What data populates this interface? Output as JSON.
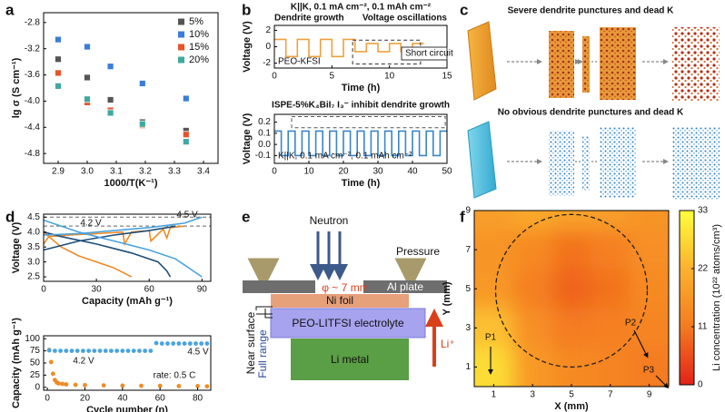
{
  "panel_labels": [
    "a",
    "b",
    "c",
    "d",
    "e",
    "f"
  ],
  "chart_data": [
    {
      "type": "scatter",
      "marker": "square",
      "x_label": "1000/T(K⁻¹)",
      "y_label": "lg σ (S cm⁻¹)",
      "x": [
        2.9,
        3.0,
        3.08,
        3.19,
        3.34
      ],
      "series": [
        {
          "name": "5%",
          "color": "#555555",
          "values": [
            -3.36,
            -3.64,
            -3.98,
            -4.32,
            -4.45
          ]
        },
        {
          "name": "10%",
          "color": "#3b7dd8",
          "values": [
            -3.06,
            -3.17,
            -3.47,
            -3.73,
            -3.96
          ]
        },
        {
          "name": "15%",
          "color": "#e8532a",
          "values": [
            -3.57,
            -4.02,
            -4.14,
            -4.37,
            -4.51
          ]
        },
        {
          "name": "20%",
          "color": "#3fa9a0",
          "values": [
            -3.77,
            -3.97,
            -4.18,
            -4.35,
            -4.62
          ]
        }
      ],
      "xlim": [
        2.85,
        3.45
      ],
      "xticks": [
        2.9,
        {
          "value": 3,
          "label": "3.0"
        },
        3.1,
        3.2,
        3.3,
        3.4
      ],
      "ylim": [
        -4.95,
        -2.65
      ],
      "yticks": [
        -2.8,
        -3.2,
        -3.6,
        {
          "value": -4,
          "label": "-4.0"
        },
        -4.4,
        -4.8
      ],
      "legend": "top-right"
    },
    {
      "type": "line",
      "title": "K||K, 0.1 mA cm⁻², 0.1 mAh cm⁻²",
      "annotations": [
        "Dendrite growth",
        "Voltage oscillations",
        "PEO-KFSI",
        "Short circuit"
      ],
      "x_label": "Time (h)",
      "y_label": "Voltage (V)",
      "x": [
        0,
        1,
        1,
        2,
        2,
        3,
        3,
        4,
        4,
        5,
        5,
        6,
        6,
        7,
        7,
        8,
        8,
        9,
        9,
        10,
        10,
        11,
        11,
        12,
        12,
        13
      ],
      "series": [
        {
          "color": "#f0a040",
          "values": [
            0.9,
            0.9,
            -1.2,
            -1.2,
            0.9,
            0.9,
            -1.2,
            -1.2,
            0.9,
            0.9,
            -1.2,
            -1.2,
            0.9,
            0.9,
            -0.6,
            -0.6,
            0.4,
            0.4,
            -0.6,
            -0.6,
            0.4,
            0.4,
            -0.6,
            -0.6,
            0.4,
            0.4
          ]
        }
      ],
      "xlim": [
        0,
        15
      ],
      "xticks": [
        0,
        5,
        10,
        15
      ],
      "ylim": [
        -2.6,
        2.6
      ],
      "yticks": [
        -2,
        0,
        2
      ]
    },
    {
      "type": "line",
      "title": "ISPE-5%K₄BiI₇ I₃⁻ inhibit dendrite growth",
      "annotations": [
        "K||K, 0.1 mA cm⁻², 0.1 mAh cm⁻²"
      ],
      "x_label": "Time (h)",
      "y_label": "Voltage (V)",
      "x": [
        0,
        2,
        2,
        4,
        4,
        6,
        6,
        8,
        8,
        10,
        10,
        12,
        12,
        14,
        14,
        16,
        16,
        18,
        18,
        20,
        20,
        22,
        22,
        24,
        24,
        26,
        26,
        28,
        28,
        30,
        30,
        32,
        32,
        34,
        34,
        36,
        36,
        38,
        38,
        40,
        40,
        42,
        42,
        44,
        44,
        46,
        46,
        48,
        48,
        50
      ],
      "series": [
        {
          "color": "#3a86c8",
          "values": [
            0.12,
            0.12,
            -0.1,
            -0.1,
            0.12,
            0.12,
            -0.1,
            -0.1,
            0.12,
            0.12,
            -0.1,
            -0.1,
            0.12,
            0.12,
            -0.1,
            -0.1,
            0.12,
            0.12,
            -0.1,
            -0.1,
            0.12,
            0.12,
            -0.1,
            -0.1,
            0.12,
            0.12,
            -0.1,
            -0.1,
            0.12,
            0.12,
            -0.1,
            -0.1,
            0.12,
            0.12,
            -0.1,
            -0.1,
            0.12,
            0.12,
            -0.1,
            -0.1,
            0.12,
            0.12,
            -0.1,
            -0.1,
            0.12,
            0.12,
            -0.1,
            -0.1,
            0.12,
            0.12
          ]
        }
      ],
      "xlim": [
        0,
        50
      ],
      "xticks": [
        0,
        10,
        20,
        30,
        40,
        50
      ],
      "ylim": [
        -0.17,
        0.27
      ],
      "yticks": [
        0.2,
        0.1,
        {
          "value": 0,
          "label": "0.0"
        },
        -0.1
      ]
    },
    {
      "type": "line",
      "x_label": "Capacity (mAh g⁻¹)",
      "y_label": "Voltage (V)",
      "annotations": [
        "4.5 V",
        "4.2 V"
      ],
      "hlines": [
        4.5,
        4.2
      ],
      "series": [
        {
          "color": "#f08a24",
          "x": [
            0,
            10,
            20,
            30,
            40,
            50
          ],
          "values": [
            4.0,
            3.5,
            3.2,
            3.0,
            2.8,
            2.5
          ]
        },
        {
          "color": "#f08a24",
          "x": [
            0,
            3,
            15,
            30,
            45,
            46,
            50,
            60,
            61,
            68,
            70,
            72,
            80
          ],
          "values": [
            3.6,
            3.85,
            3.9,
            3.95,
            4.0,
            3.6,
            4.0,
            4.05,
            3.7,
            4.1,
            3.8,
            4.15,
            4.2
          ]
        },
        {
          "color": "#1f4e79",
          "x": [
            0,
            10,
            30,
            50,
            65,
            70,
            72
          ],
          "values": [
            4.0,
            3.85,
            3.6,
            3.3,
            3.0,
            2.7,
            2.5
          ]
        },
        {
          "color": "#1f4e79",
          "x": [
            0,
            20,
            40,
            60,
            75
          ],
          "values": [
            3.4,
            3.7,
            3.9,
            4.05,
            4.2
          ]
        },
        {
          "color": "#4aa3df",
          "x": [
            0,
            20,
            40,
            60,
            80,
            90
          ],
          "values": [
            3.9,
            3.95,
            4.05,
            4.15,
            4.3,
            4.5
          ]
        },
        {
          "color": "#4aa3df",
          "x": [
            0,
            20,
            40,
            60,
            75,
            85,
            90
          ],
          "values": [
            4.4,
            4.0,
            3.7,
            3.4,
            3.1,
            2.7,
            2.5
          ]
        }
      ],
      "xlim": [
        0,
        95
      ],
      "xticks": [
        0,
        30,
        60,
        90
      ],
      "ylim": [
        2.35,
        4.6
      ],
      "yticks": [
        2.5,
        {
          "value": 3,
          "label": "3.0"
        },
        3.5,
        {
          "value": 4,
          "label": "4.0"
        },
        4.5
      ]
    },
    {
      "type": "scatter",
      "marker": "circle",
      "x_label": "Cycle number (n)",
      "y_label": "Capacity (mAh g⁻¹)",
      "annotations": [
        "4.2 V",
        "4.5 V",
        "rate: 0.5 C"
      ],
      "series": [
        {
          "color": "#f08a24",
          "x": [
            1,
            2,
            3,
            4,
            5,
            6,
            8,
            10,
            15,
            20,
            30,
            40,
            50,
            60,
            70,
            80,
            85
          ],
          "values": [
            77,
            52,
            28,
            15,
            10,
            8,
            7,
            6,
            5,
            4.5,
            4,
            3.5,
            3,
            3,
            2.5,
            2.5,
            2
          ]
        },
        {
          "color": "#4aa3df",
          "x": [
            1,
            4,
            7,
            10,
            13,
            16,
            19,
            22,
            25,
            28,
            31,
            34,
            37,
            40,
            43,
            46,
            49,
            52,
            55
          ],
          "values": [
            76,
            75,
            75,
            75,
            75,
            75,
            75,
            75,
            75,
            75,
            75,
            75,
            75,
            75,
            75,
            75,
            75,
            75,
            75
          ]
        },
        {
          "color": "#4aa3df",
          "x": [
            58,
            61,
            64,
            67,
            70,
            73,
            76,
            79,
            82,
            85
          ],
          "values": [
            91,
            90,
            90,
            90,
            90,
            90,
            90,
            90,
            90,
            90
          ]
        }
      ],
      "xlim": [
        -2,
        87
      ],
      "xticks": [
        0,
        20,
        40,
        60,
        80
      ],
      "ylim": [
        -6,
        106
      ],
      "yticks": [
        0,
        25,
        50,
        75,
        100
      ]
    },
    {
      "type": "heatmap",
      "x_label": "X (mm)",
      "y_label": "Y (mm)",
      "annotations": [
        "P1",
        "P2",
        "P3"
      ],
      "colorbar_label": "Li concentration (10²² atoms/cm³)",
      "x": [
        1,
        3,
        5,
        7,
        9
      ],
      "y": [
        9,
        7,
        5,
        3,
        1
      ],
      "values": [
        [
          18,
          20,
          19,
          18,
          16
        ],
        [
          16,
          14,
          10,
          12,
          15
        ],
        [
          17,
          12,
          8,
          10,
          14
        ],
        [
          24,
          15,
          11,
          12,
          13
        ],
        [
          28,
          17,
          14,
          13,
          11
        ]
      ],
      "colormap": [
        "#e32219",
        "#f47b20",
        "#fbb22e",
        "#ffff3c"
      ],
      "clim": [
        0,
        33
      ],
      "cticks": [
        0,
        11,
        22,
        33
      ],
      "xlim": [
        0,
        10
      ],
      "xticks": [
        1,
        3,
        5,
        7,
        9
      ],
      "ylim": [
        0,
        9
      ],
      "yticks": [
        1,
        3,
        5,
        7,
        9
      ]
    }
  ],
  "panel_c": {
    "top_caption": "Severe dendrite punctures and dead K",
    "bottom_caption": "No obvious dendrite punctures and dead K"
  },
  "panel_e": {
    "neutron": "Neutron",
    "pressure": "Pressure",
    "aperture": "φ ~ 7 mm",
    "ni_foil": "Ni foil",
    "al_plate": "Al plate",
    "electrolyte": "PEO-LITFSI electrolyte",
    "li_metal": "Li metal",
    "li_ion": "Li⁺",
    "near_surface": "Near surface",
    "full_range": "Full range"
  }
}
